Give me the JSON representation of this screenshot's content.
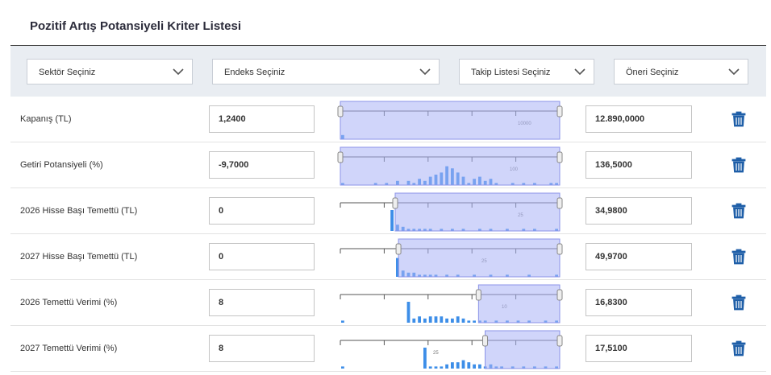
{
  "title": "Pozitif Artış Potansiyeli Kriter Listesi",
  "filters": [
    "Sektör Seçiniz",
    "Endeks Seçiniz",
    "Takip Listesi Seçiniz",
    "Öneri Seçiniz"
  ],
  "rows": [
    {
      "label": "Kapanış (TL)",
      "min": "1,2400",
      "max": "12.890,0000",
      "scale_label": "10000",
      "histogram": [
        2,
        0,
        0,
        0,
        0,
        0,
        0,
        0,
        0,
        0,
        0,
        0,
        0,
        0,
        0,
        0,
        0,
        0,
        0,
        0,
        0,
        0,
        0,
        0,
        0,
        0,
        0,
        0,
        0,
        0,
        0,
        0,
        0,
        0,
        0,
        0,
        0,
        0,
        0,
        0
      ]
    },
    {
      "label": "Getiri Potansiyeli (%)",
      "min": "-9,7000",
      "max": "136,5000",
      "scale_label": "100",
      "histogram": [
        1,
        0,
        0,
        0,
        0,
        0,
        1,
        0,
        1,
        0,
        2,
        0,
        2,
        1,
        3,
        2,
        4,
        5,
        6,
        9,
        8,
        6,
        4,
        1,
        3,
        4,
        2,
        3,
        1,
        0,
        0,
        1,
        0,
        1,
        0,
        1,
        0,
        0,
        1,
        1
      ]
    },
    {
      "label": "2026 Hisse Başı Temettü (TL)",
      "min": "0",
      "max": "34,9800",
      "scale_label": "25",
      "histogram": [
        0,
        0,
        0,
        0,
        0,
        0,
        0,
        0,
        0,
        10,
        3,
        2,
        1,
        1,
        1,
        1,
        1,
        0,
        1,
        0,
        1,
        0,
        1,
        0,
        0,
        1,
        0,
        1,
        0,
        0,
        1,
        0,
        0,
        1,
        0,
        1,
        0,
        0,
        0,
        1
      ]
    },
    {
      "label": "2027 Hisse Başı Temettü (TL)",
      "min": "0",
      "max": "49,9700",
      "scale_label": "25",
      "histogram": [
        0,
        0,
        0,
        0,
        0,
        0,
        0,
        0,
        0,
        0,
        9,
        3,
        2,
        2,
        1,
        1,
        1,
        1,
        0,
        1,
        0,
        1,
        0,
        0,
        1,
        0,
        0,
        1,
        0,
        0,
        1,
        0,
        0,
        0,
        1,
        0,
        0,
        0,
        0,
        1
      ]
    },
    {
      "label": "2026 Temettü Verimi (%)",
      "min": "8",
      "max": "16,8300",
      "scale_label": "10",
      "histogram": [
        1,
        0,
        0,
        0,
        0,
        0,
        0,
        0,
        0,
        0,
        0,
        0,
        10,
        2,
        3,
        2,
        3,
        3,
        3,
        2,
        2,
        3,
        2,
        1,
        1,
        1,
        1,
        0,
        1,
        0,
        1,
        0,
        1,
        0,
        1,
        0,
        0,
        1,
        0,
        1
      ]
    },
    {
      "label": "2027 Temettü Verimi (%)",
      "min": "8",
      "max": "17,5100",
      "scale_label": "25",
      "histogram": [
        1,
        0,
        0,
        0,
        0,
        0,
        0,
        0,
        0,
        0,
        0,
        0,
        0,
        0,
        0,
        10,
        1,
        1,
        1,
        2,
        3,
        3,
        4,
        3,
        2,
        2,
        1,
        2,
        1,
        1,
        0,
        1,
        0,
        1,
        0,
        1,
        0,
        1,
        0,
        1
      ]
    }
  ]
}
